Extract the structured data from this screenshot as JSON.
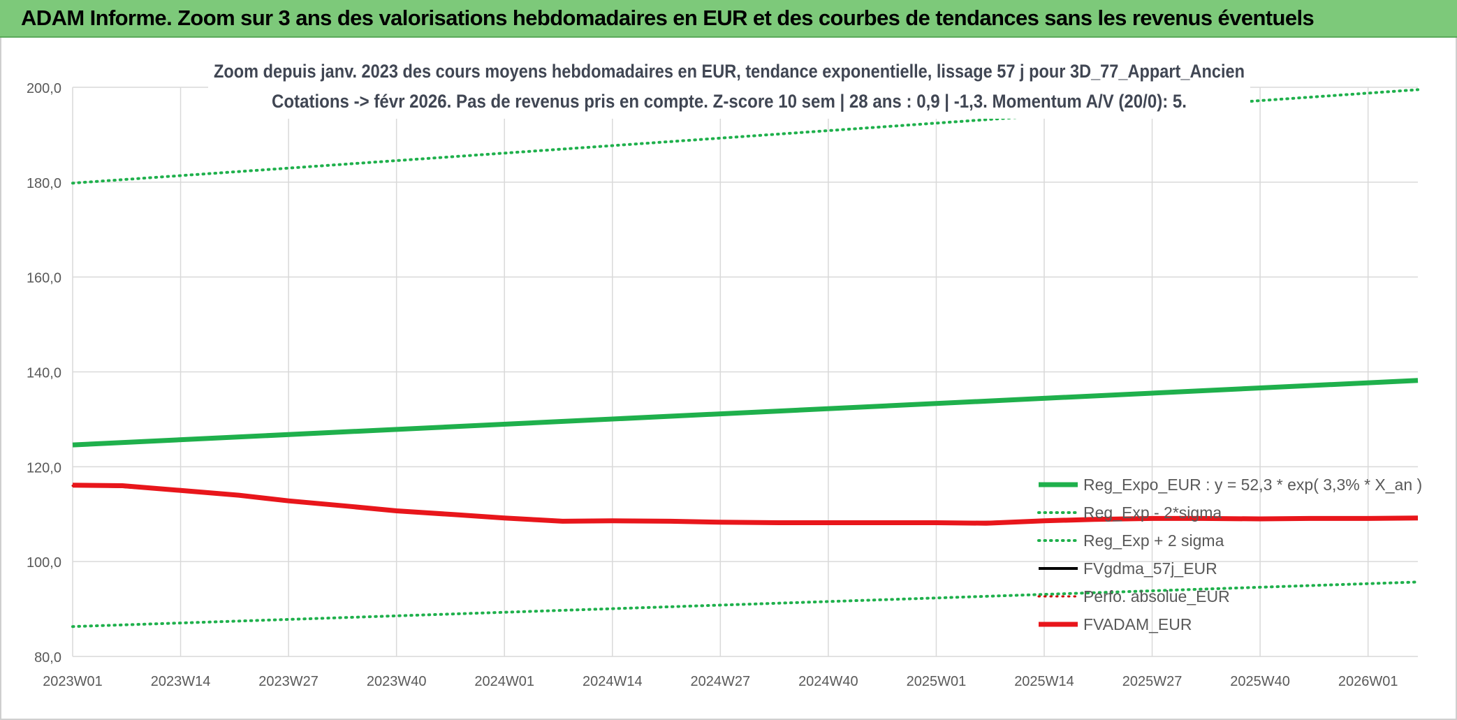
{
  "header": {
    "title": "ADAM Informe. Zoom sur 3 ans des valorisations hebdomadaires en EUR et des courbes de tendances sans les revenus éventuels"
  },
  "chart_data": {
    "type": "line",
    "title_lines": [
      "Zoom depuis janv. 2023 des cours moyens hebdomadaires en EUR, tendance exponentielle, lissage 57 j pour 3D_77_Appart_Ancien",
      "Cotations -> févr 2026. Pas de revenus pris en compte. Z-score 10 sem | 28 ans : 0,9 | -1,3. Momentum A/V (20/0): 5."
    ],
    "x_tick_labels": [
      "2023W01",
      "2023W14",
      "2023W27",
      "2023W40",
      "2024W01",
      "2024W14",
      "2024W27",
      "2024W40",
      "2025W01",
      "2025W14",
      "2025W27",
      "2025W40",
      "2026W01"
    ],
    "x_range": [
      0,
      162
    ],
    "y_tick_labels": [
      "80,0",
      "100,0",
      "120,0",
      "140,0",
      "160,0",
      "180,0",
      "200,0"
    ],
    "ylim": [
      80,
      200
    ],
    "grid": true,
    "legend_position": "bottom-right",
    "series": [
      {
        "name": "Reg_Expo_EUR : y = 52,3 * exp( 3,3% *  X_an )",
        "color": "#1fb04c",
        "style": "solid",
        "width": 7,
        "x": [
          0,
          162
        ],
        "y": [
          124.6,
          138.2
        ]
      },
      {
        "name": "Reg_Exp - 2*sigma",
        "color": "#1fb04c",
        "style": "dotted",
        "width": 4,
        "x": [
          0,
          162
        ],
        "y": [
          86.3,
          95.7
        ]
      },
      {
        "name": "Reg_Exp + 2 sigma",
        "color": "#1fb04c",
        "style": "dotted",
        "width": 4,
        "x": [
          0,
          162
        ],
        "y": [
          179.8,
          199.5
        ]
      },
      {
        "name": "FVgdma_57j_EUR",
        "color": "#000000",
        "style": "solid",
        "width": 4,
        "x": [
          0,
          6,
          13,
          20,
          26,
          33,
          39,
          46,
          52,
          59,
          65,
          72,
          78,
          85,
          91,
          97,
          104,
          110,
          117,
          123,
          130,
          136,
          143,
          149,
          156,
          162
        ],
        "y": [
          116.0,
          115.8,
          114.9,
          113.9,
          112.7,
          111.6,
          110.6,
          109.8,
          109.2,
          108.7,
          108.6,
          108.5,
          108.4,
          108.3,
          108.2,
          108.2,
          108.2,
          108.3,
          108.6,
          108.9,
          109.1,
          109.1,
          109.1,
          109.1,
          109.2,
          109.2
        ]
      },
      {
        "name": "Perfo. absolue_EUR",
        "color": "#cc0000",
        "style": "dotted",
        "width": 3,
        "x": [
          0,
          6,
          13,
          20,
          26,
          33,
          39,
          46,
          52,
          59,
          65,
          72,
          78,
          85,
          91,
          97,
          104,
          110,
          117,
          123,
          130,
          136,
          143,
          149,
          156,
          162
        ],
        "y": [
          116.0,
          115.8,
          114.9,
          113.9,
          112.7,
          111.6,
          110.6,
          109.8,
          109.2,
          108.6,
          108.6,
          108.5,
          108.3,
          108.3,
          108.2,
          108.2,
          108.2,
          108.3,
          108.6,
          108.9,
          109.1,
          109.1,
          109.0,
          109.1,
          109.2,
          109.2
        ]
      },
      {
        "name": "FVADAM_EUR",
        "color": "#e8161b",
        "style": "solid",
        "width": 7,
        "x": [
          0,
          6,
          13,
          20,
          26,
          33,
          39,
          46,
          52,
          56,
          59,
          65,
          72,
          78,
          85,
          91,
          97,
          104,
          110,
          117,
          123,
          130,
          136,
          143,
          149,
          156,
          162
        ],
        "y": [
          116.1,
          116.0,
          115.0,
          114.0,
          112.8,
          111.7,
          110.7,
          109.9,
          109.2,
          108.8,
          108.5,
          108.6,
          108.5,
          108.3,
          108.2,
          108.2,
          108.2,
          108.2,
          108.1,
          108.6,
          108.9,
          109.1,
          109.1,
          109.0,
          109.1,
          109.1,
          109.2
        ]
      }
    ]
  }
}
